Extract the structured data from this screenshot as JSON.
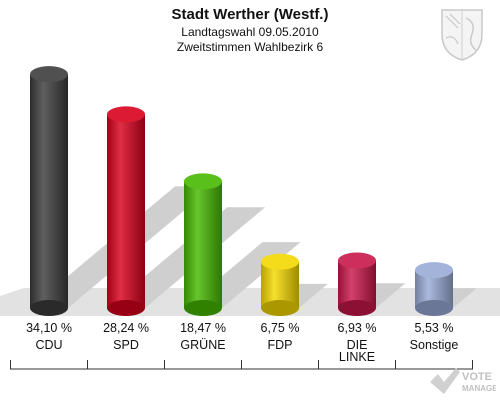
{
  "header": {
    "title": "Stadt Werther (Westf.)",
    "subtitle_election": "Landtagswahl 09.05.2010",
    "subtitle_district": "Zweitstimmen Wahlbezirk 6"
  },
  "watermark": {
    "line1": "VOTE",
    "line2": "MANAGER"
  },
  "chart_data": {
    "type": "bar",
    "categories": [
      "CDU",
      "SPD",
      "GRÜNE",
      "FDP",
      "DIE LINKE",
      "Sonstige"
    ],
    "values": [
      34.1,
      28.24,
      18.47,
      6.75,
      6.93,
      5.53
    ],
    "value_labels": [
      "34,10 %",
      "28,24 %",
      "18,47 %",
      "6,75 %",
      "6,93 %",
      "5,53 %"
    ],
    "colors": [
      "#3c3c3c",
      "#d8001c",
      "#46b800",
      "#f4d800",
      "#c8174a",
      "#99aad6"
    ],
    "ylim": [
      0,
      35
    ],
    "grid": false,
    "legend": "none"
  }
}
